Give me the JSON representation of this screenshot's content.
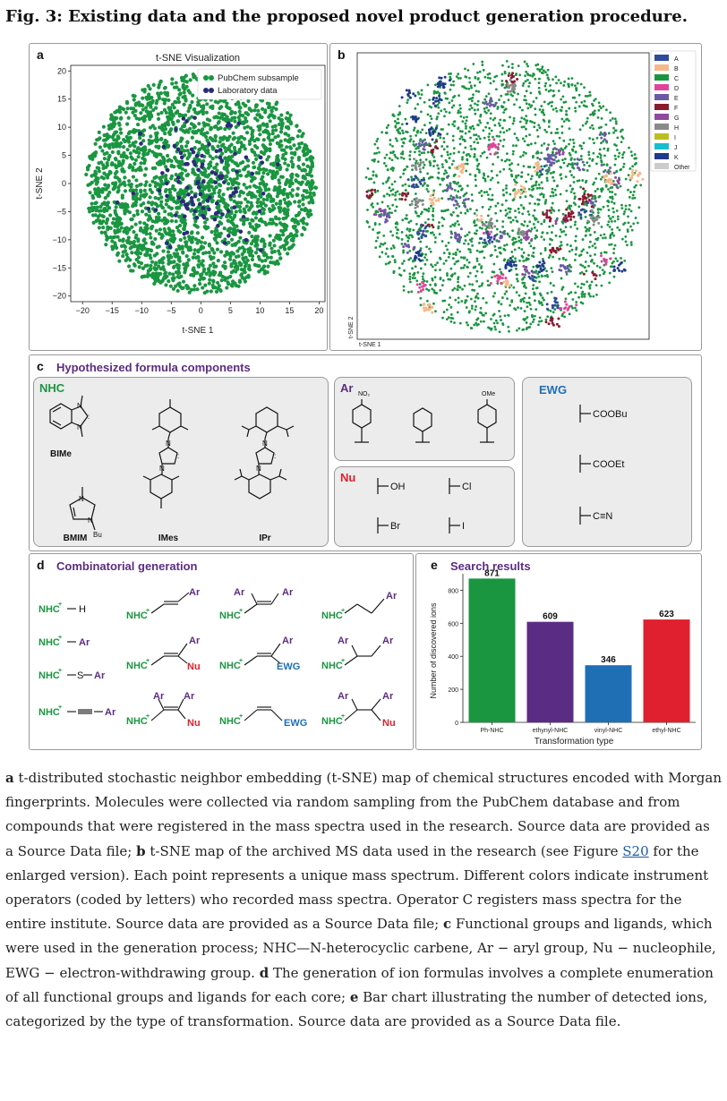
{
  "figure_title": "Fig. 3: Existing data and the proposed novel product generation procedure.",
  "panel_a": {
    "label": "a",
    "chart_data": {
      "type": "scatter",
      "title": "t-SNE Visualization",
      "xlabel": "t-SNE 1",
      "ylabel": "t-SNE 2",
      "xlim": [
        -22,
        21
      ],
      "ylim": [
        -21,
        21
      ],
      "xticks": [
        "−20",
        "−15",
        "−10",
        "−5",
        "0",
        "5",
        "10",
        "15",
        "20"
      ],
      "yticks": [
        "20",
        "15",
        "10",
        "5",
        "0",
        "−5",
        "−10",
        "−15",
        "−20"
      ],
      "legend_position": "top-right",
      "series": [
        {
          "name": "PubChem subsample",
          "color": "#1a9641",
          "points": "dense cloud, approx. within radius 20 of origin"
        },
        {
          "name": "Laboratory data",
          "color": "#2b2b7a",
          "points": "sparse, concentrated near center"
        }
      ]
    }
  },
  "panel_b": {
    "label": "b",
    "xlabel": "t-SNE 1",
    "ylabel": "t-SNE 2",
    "legend": [
      {
        "name": "A",
        "color": "#2f4b9a"
      },
      {
        "name": "B",
        "color": "#f5b88a"
      },
      {
        "name": "C",
        "color": "#1a9641"
      },
      {
        "name": "D",
        "color": "#e0449a"
      },
      {
        "name": "E",
        "color": "#6a5aa6"
      },
      {
        "name": "F",
        "color": "#8b1a2e"
      },
      {
        "name": "G",
        "color": "#8e4aa0"
      },
      {
        "name": "H",
        "color": "#8a8a8a"
      },
      {
        "name": "I",
        "color": "#bcbd22"
      },
      {
        "name": "J",
        "color": "#17becf"
      },
      {
        "name": "K",
        "color": "#1f3a8a"
      },
      {
        "name": "Other",
        "color": "#cccccc"
      }
    ]
  },
  "panel_c": {
    "label": "c",
    "title": "Hypothesized formula components",
    "nhc": {
      "title": "NHC",
      "items": [
        "BIMe",
        "BMIM",
        "IMes",
        "IPr"
      ]
    },
    "ar": {
      "title": "Ar",
      "items": [
        "NO₂",
        "OMe"
      ]
    },
    "nu": {
      "title": "Nu",
      "items": [
        "OH",
        "Cl",
        "Br",
        "I"
      ]
    },
    "ewg": {
      "title": "EWG",
      "items": [
        "COOBu",
        "COOEt",
        "C≡N"
      ]
    }
  },
  "panel_d": {
    "label": "d",
    "title": "Combinatorial generation",
    "nhc": "NHC",
    "plus": "+",
    "h": "H",
    "ar": "Ar",
    "s": "S",
    "nu": "Nu",
    "ewg": "EWG"
  },
  "panel_e": {
    "label": "e",
    "chart_data": {
      "type": "bar",
      "title": "Search results",
      "xlabel": "Transformation type",
      "ylabel": "Number of discovered ions",
      "categories": [
        "Ph-NHC",
        "ethynyl-NHC",
        "vinyl-NHC",
        "ethyl-NHC"
      ],
      "values": [
        871,
        609,
        346,
        623
      ],
      "colors": [
        "#1a9641",
        "#5b2c83",
        "#1f6fb5",
        "#e0202e"
      ],
      "ylim": [
        0,
        900
      ],
      "yticks": [
        "0",
        "200",
        "400",
        "600",
        "800"
      ]
    }
  },
  "caption": {
    "a_label": "a",
    "a_text": " t-distributed stochastic neighbor embedding (t-SNE) map of chemical structures encoded with Morgan fingerprints. Molecules were collected via random sampling from the PubChem database and from compounds that were registered in the mass spectra used in the research. Source data are provided as a Source Data file; ",
    "b_label": "b",
    "b_text1": " t-SNE map of the archived MS data used in the research (see Figure ",
    "b_link": "S20",
    "b_text2": " for the enlarged version). Each point represents a unique mass spectrum. Different colors indicate instrument operators (coded by letters) who recorded mass spectra. Operator C registers mass spectra for the entire institute. Source data are provided as a Source Data file; ",
    "c_label": "c",
    "c_text": " Functional groups and ligands, which were used in the generation process; NHC—N-heterocyclic carbene, Ar − aryl group, Nu − nucleophile, EWG − electron-withdrawing group. ",
    "d_label": "d",
    "d_text": " The generation of ion formulas involves a complete enumeration of all functional groups and ligands for each core; ",
    "e_label": "e",
    "e_text": " Bar chart illustrating the number of detected ions, categorized by the type of transformation. Source data are provided as a Source Data file."
  }
}
